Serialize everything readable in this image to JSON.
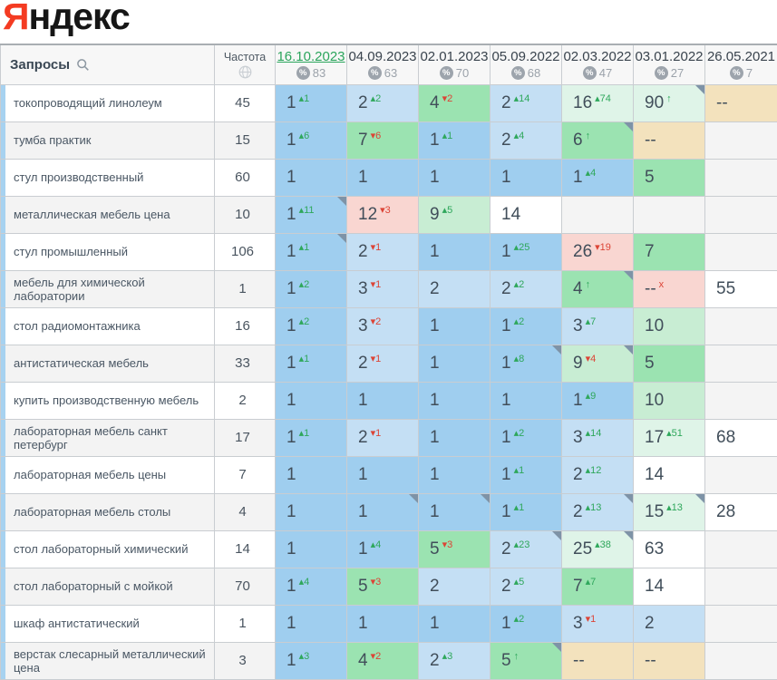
{
  "logo": {
    "first": "Я",
    "rest": "ндекс"
  },
  "table": {
    "queries_header": "Запросы",
    "frequency_header": "Частота",
    "palette": {
      "b1": "#9fceef",
      "b2": "#c4dff4",
      "g1": "#9be3b1",
      "g2": "#c8edd3",
      "g3": "#dff4e8",
      "w": "#ffffff",
      "p": "#f9d6d1",
      "t": "#f3e2bd",
      "e": "#f4f4f4"
    },
    "change_colors": {
      "up": "#2ea75b",
      "down": "#dc4436"
    },
    "columns": [
      {
        "date": "16.10.2023",
        "count": "83",
        "active": true
      },
      {
        "date": "04.09.2023",
        "count": "63",
        "active": false
      },
      {
        "date": "02.01.2023",
        "count": "70",
        "active": false
      },
      {
        "date": "05.09.2022",
        "count": "68",
        "active": false
      },
      {
        "date": "02.03.2022",
        "count": "47",
        "active": false
      },
      {
        "date": "03.01.2022",
        "count": "27",
        "active": false
      },
      {
        "date": "26.05.2021",
        "count": "7",
        "active": false
      }
    ],
    "rows": [
      {
        "query": "токопроводящий линолеум",
        "frequency": "45",
        "cells": [
          {
            "v": "1",
            "s": "▴1",
            "c": "u",
            "bg": "b1"
          },
          {
            "v": "2",
            "s": "▴2",
            "c": "u",
            "bg": "b2"
          },
          {
            "v": "4",
            "s": "▾2",
            "c": "d",
            "bg": "g1"
          },
          {
            "v": "2",
            "s": "▴14",
            "c": "u",
            "bg": "b2"
          },
          {
            "v": "16",
            "s": "▴74",
            "c": "u",
            "bg": "g3"
          },
          {
            "v": "90",
            "s": "↑",
            "c": "u",
            "bg": "g3",
            "n": true
          },
          {
            "v": "--",
            "bg": "t"
          }
        ]
      },
      {
        "query": "тумба практик",
        "frequency": "15",
        "cells": [
          {
            "v": "1",
            "s": "▴6",
            "c": "u",
            "bg": "b1"
          },
          {
            "v": "7",
            "s": "▾6",
            "c": "d",
            "bg": "g1"
          },
          {
            "v": "1",
            "s": "▴1",
            "c": "u",
            "bg": "b1"
          },
          {
            "v": "2",
            "s": "▴4",
            "c": "u",
            "bg": "b2"
          },
          {
            "v": "6",
            "s": "↑",
            "c": "u",
            "bg": "g1",
            "n": true
          },
          {
            "v": "--",
            "bg": "t"
          },
          {
            "bg": "e"
          }
        ]
      },
      {
        "query": "стул производственный",
        "frequency": "60",
        "cells": [
          {
            "v": "1",
            "bg": "b1"
          },
          {
            "v": "1",
            "bg": "b1"
          },
          {
            "v": "1",
            "bg": "b1"
          },
          {
            "v": "1",
            "bg": "b1"
          },
          {
            "v": "1",
            "s": "▴4",
            "c": "u",
            "bg": "b1"
          },
          {
            "v": "5",
            "bg": "g1"
          },
          {
            "bg": "e"
          }
        ]
      },
      {
        "query": "металлическая мебель цена",
        "frequency": "10",
        "cells": [
          {
            "v": "1",
            "s": "▴11",
            "c": "u",
            "bg": "b1",
            "n": true
          },
          {
            "v": "12",
            "s": "▾3",
            "c": "d",
            "bg": "p"
          },
          {
            "v": "9",
            "s": "▴5",
            "c": "u",
            "bg": "g2"
          },
          {
            "v": "14",
            "bg": "w"
          },
          {
            "bg": "e"
          },
          {
            "bg": "e"
          },
          {
            "bg": "e"
          }
        ]
      },
      {
        "query": "стул промышленный",
        "frequency": "106",
        "cells": [
          {
            "v": "1",
            "s": "▴1",
            "c": "u",
            "bg": "b1",
            "n": true
          },
          {
            "v": "2",
            "s": "▾1",
            "c": "d",
            "bg": "b2"
          },
          {
            "v": "1",
            "bg": "b1"
          },
          {
            "v": "1",
            "s": "▴25",
            "c": "u",
            "bg": "b1"
          },
          {
            "v": "26",
            "s": "▾19",
            "c": "d",
            "bg": "p"
          },
          {
            "v": "7",
            "bg": "g1"
          },
          {
            "bg": "e"
          }
        ]
      },
      {
        "query": "мебель для химической лаборатории",
        "frequency": "1",
        "cells": [
          {
            "v": "1",
            "s": "▴2",
            "c": "u",
            "bg": "b1"
          },
          {
            "v": "3",
            "s": "▾1",
            "c": "d",
            "bg": "b2"
          },
          {
            "v": "2",
            "bg": "b2"
          },
          {
            "v": "2",
            "s": "▴2",
            "c": "u",
            "bg": "b2"
          },
          {
            "v": "4",
            "s": "↑",
            "c": "u",
            "bg": "g1",
            "n": true
          },
          {
            "v": "--",
            "s": "x",
            "c": "d",
            "bg": "p"
          },
          {
            "v": "55",
            "bg": "w"
          }
        ]
      },
      {
        "query": "стол радиомонтажника",
        "frequency": "16",
        "cells": [
          {
            "v": "1",
            "s": "▴2",
            "c": "u",
            "bg": "b1"
          },
          {
            "v": "3",
            "s": "▾2",
            "c": "d",
            "bg": "b2"
          },
          {
            "v": "1",
            "bg": "b1"
          },
          {
            "v": "1",
            "s": "▴2",
            "c": "u",
            "bg": "b1"
          },
          {
            "v": "3",
            "s": "▴7",
            "c": "u",
            "bg": "b2"
          },
          {
            "v": "10",
            "bg": "g2"
          },
          {
            "bg": "e"
          }
        ]
      },
      {
        "query": "антистатическая мебель",
        "frequency": "33",
        "cells": [
          {
            "v": "1",
            "s": "▴1",
            "c": "u",
            "bg": "b1"
          },
          {
            "v": "2",
            "s": "▾1",
            "c": "d",
            "bg": "b2"
          },
          {
            "v": "1",
            "bg": "b1"
          },
          {
            "v": "1",
            "s": "▴8",
            "c": "u",
            "bg": "b1",
            "n": true
          },
          {
            "v": "9",
            "s": "▾4",
            "c": "d",
            "bg": "g2",
            "n": true
          },
          {
            "v": "5",
            "bg": "g1"
          },
          {
            "bg": "e"
          }
        ]
      },
      {
        "query": "купить производственную мебель",
        "frequency": "2",
        "cells": [
          {
            "v": "1",
            "bg": "b1"
          },
          {
            "v": "1",
            "bg": "b1"
          },
          {
            "v": "1",
            "bg": "b1"
          },
          {
            "v": "1",
            "bg": "b1"
          },
          {
            "v": "1",
            "s": "▴9",
            "c": "u",
            "bg": "b1"
          },
          {
            "v": "10",
            "bg": "g2"
          },
          {
            "bg": "e"
          }
        ]
      },
      {
        "query": "лабораторная мебель санкт петербург",
        "frequency": "17",
        "cells": [
          {
            "v": "1",
            "s": "▴1",
            "c": "u",
            "bg": "b1"
          },
          {
            "v": "2",
            "s": "▾1",
            "c": "d",
            "bg": "b2"
          },
          {
            "v": "1",
            "bg": "b1"
          },
          {
            "v": "1",
            "s": "▴2",
            "c": "u",
            "bg": "b1"
          },
          {
            "v": "3",
            "s": "▴14",
            "c": "u",
            "bg": "b2"
          },
          {
            "v": "17",
            "s": "▴51",
            "c": "u",
            "bg": "g3"
          },
          {
            "v": "68",
            "bg": "w"
          }
        ]
      },
      {
        "query": "лабораторная мебель цены",
        "frequency": "7",
        "cells": [
          {
            "v": "1",
            "bg": "b1"
          },
          {
            "v": "1",
            "bg": "b1"
          },
          {
            "v": "1",
            "bg": "b1"
          },
          {
            "v": "1",
            "s": "▴1",
            "c": "u",
            "bg": "b1"
          },
          {
            "v": "2",
            "s": "▴12",
            "c": "u",
            "bg": "b2"
          },
          {
            "v": "14",
            "bg": "w"
          },
          {
            "bg": "e"
          }
        ]
      },
      {
        "query": "лабораторная мебель столы",
        "frequency": "4",
        "cells": [
          {
            "v": "1",
            "bg": "b1"
          },
          {
            "v": "1",
            "bg": "b1",
            "n": true
          },
          {
            "v": "1",
            "bg": "b1",
            "n": true
          },
          {
            "v": "1",
            "s": "▴1",
            "c": "u",
            "bg": "b1"
          },
          {
            "v": "2",
            "s": "▴13",
            "c": "u",
            "bg": "b2",
            "n": true
          },
          {
            "v": "15",
            "s": "▴13",
            "c": "u",
            "bg": "g3",
            "n": true
          },
          {
            "v": "28",
            "bg": "w"
          }
        ]
      },
      {
        "query": "стол лабораторный химический",
        "frequency": "14",
        "cells": [
          {
            "v": "1",
            "bg": "b1"
          },
          {
            "v": "1",
            "s": "▴4",
            "c": "u",
            "bg": "b1"
          },
          {
            "v": "5",
            "s": "▾3",
            "c": "d",
            "bg": "g1"
          },
          {
            "v": "2",
            "s": "▴23",
            "c": "u",
            "bg": "b2",
            "n": true
          },
          {
            "v": "25",
            "s": "▴38",
            "c": "u",
            "bg": "g3",
            "n": true
          },
          {
            "v": "63",
            "bg": "w"
          },
          {
            "bg": "e"
          }
        ]
      },
      {
        "query": "стол лабораторный с мойкой",
        "frequency": "70",
        "cells": [
          {
            "v": "1",
            "s": "▴4",
            "c": "u",
            "bg": "b1"
          },
          {
            "v": "5",
            "s": "▾3",
            "c": "d",
            "bg": "g1"
          },
          {
            "v": "2",
            "bg": "b2"
          },
          {
            "v": "2",
            "s": "▴5",
            "c": "u",
            "bg": "b2"
          },
          {
            "v": "7",
            "s": "▴7",
            "c": "u",
            "bg": "g1"
          },
          {
            "v": "14",
            "bg": "w"
          },
          {
            "bg": "e"
          }
        ]
      },
      {
        "query": "шкаф антистатический",
        "frequency": "1",
        "cells": [
          {
            "v": "1",
            "bg": "b1"
          },
          {
            "v": "1",
            "bg": "b1"
          },
          {
            "v": "1",
            "bg": "b1"
          },
          {
            "v": "1",
            "s": "▴2",
            "c": "u",
            "bg": "b1"
          },
          {
            "v": "3",
            "s": "▾1",
            "c": "d",
            "bg": "b2"
          },
          {
            "v": "2",
            "bg": "b2"
          },
          {
            "bg": "e"
          }
        ]
      },
      {
        "query": "верстак слесарный металлический цена",
        "frequency": "3",
        "cells": [
          {
            "v": "1",
            "s": "▴3",
            "c": "u",
            "bg": "b1"
          },
          {
            "v": "4",
            "s": "▾2",
            "c": "d",
            "bg": "g1"
          },
          {
            "v": "2",
            "s": "▴3",
            "c": "u",
            "bg": "b2"
          },
          {
            "v": "5",
            "s": "↑",
            "c": "u",
            "bg": "g1",
            "n": true
          },
          {
            "v": "--",
            "bg": "t"
          },
          {
            "v": "--",
            "bg": "t"
          },
          {
            "bg": "e"
          }
        ]
      }
    ]
  }
}
